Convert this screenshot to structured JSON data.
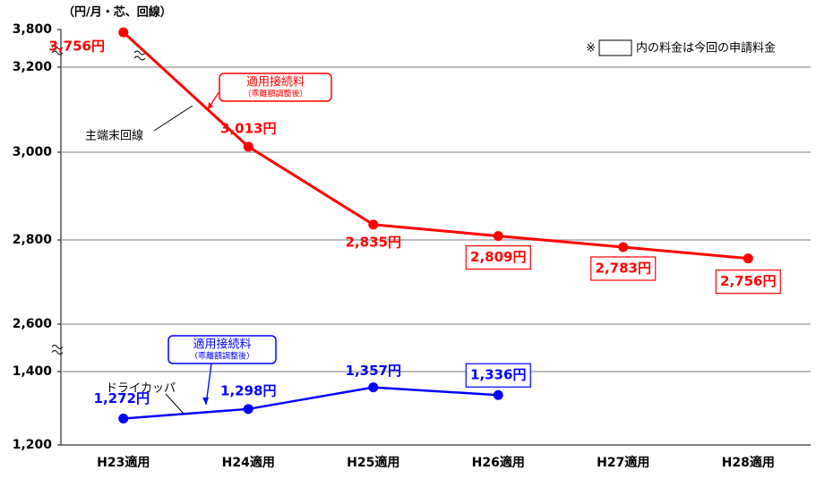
{
  "chart_data": {
    "type": "line",
    "unit_label": "（円/月・芯、回線）",
    "note_prefix": "※",
    "note": "内の料金は今回の申請料金",
    "categories": [
      "H23適用",
      "H24適用",
      "H25適用",
      "H26適用",
      "H27適用",
      "H28適用"
    ],
    "ylim": [
      1200,
      3800
    ],
    "yticks": [
      {
        "value": 3800,
        "label": "3,800"
      },
      {
        "value": 3200,
        "label": "3,200"
      },
      {
        "value": 3000,
        "label": "3,000"
      },
      {
        "value": 2800,
        "label": "2,800"
      },
      {
        "value": 2600,
        "label": "2,600"
      },
      {
        "value": 1400,
        "label": "1,400"
      },
      {
        "value": 1200,
        "label": "1,200"
      }
    ],
    "axis_breaks": [
      [
        3200,
        3800
      ],
      [
        1400,
        2600
      ]
    ],
    "grid": true,
    "series": [
      {
        "name": "主端末回線",
        "color": "#ff0000",
        "values": [
          3756,
          3013,
          2835,
          2809,
          2783,
          2756
        ],
        "value_labels": [
          "3,756円",
          "3,013円",
          "2,835円",
          "2,809円",
          "2,783円",
          "2,756円"
        ],
        "boxed": [
          false,
          false,
          false,
          true,
          true,
          true
        ],
        "callout": [
          "適用接続料",
          "（乖離額調整後）"
        ]
      },
      {
        "name": "ドライカッパ",
        "color": "#0000ff",
        "values": [
          1272,
          1298,
          1357,
          1336,
          null,
          null
        ],
        "value_labels": [
          "1,272円",
          "1,298円",
          "1,357円",
          "1,336円",
          null,
          null
        ],
        "boxed": [
          false,
          false,
          false,
          true,
          false,
          false
        ],
        "callout": [
          "適用接続料",
          "（乖離額調整後）"
        ]
      }
    ]
  }
}
